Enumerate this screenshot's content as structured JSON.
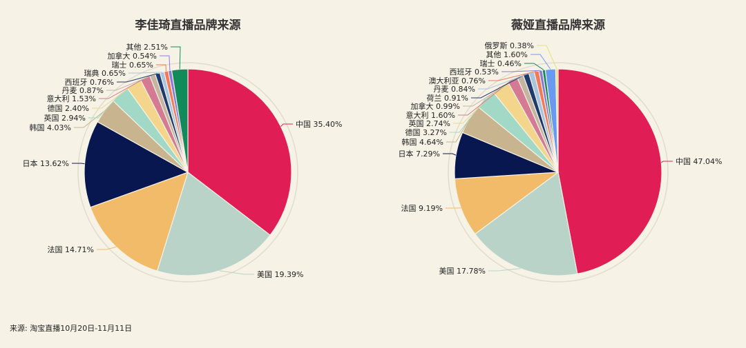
{
  "chart_data": [
    {
      "type": "pie",
      "title": "李佳琦直播品牌来源",
      "slices": [
        {
          "label": "中国",
          "value": 35.4,
          "display": "35.40%",
          "color": "#e01e55"
        },
        {
          "label": "美国",
          "value": 19.39,
          "display": "19.39%",
          "color": "#b9d3c9"
        },
        {
          "label": "法国",
          "value": 14.71,
          "display": "14.71%",
          "color": "#f1bb6a"
        },
        {
          "label": "日本",
          "value": 13.62,
          "display": "13.62%",
          "color": "#091750"
        },
        {
          "label": "韩国",
          "value": 4.03,
          "display": "4.03%",
          "color": "#c8b48e"
        },
        {
          "label": "英国",
          "value": 2.94,
          "display": "2.94%",
          "color": "#a2d9c6"
        },
        {
          "label": "德国",
          "value": 2.4,
          "display": "2.40%",
          "color": "#f3d68c"
        },
        {
          "label": "意大利",
          "value": 1.53,
          "display": "1.53%",
          "color": "#d47a93"
        },
        {
          "label": "丹麦",
          "value": 0.87,
          "display": "0.87%",
          "color": "#c4b5a0"
        },
        {
          "label": "西班牙",
          "value": 0.76,
          "display": "0.76%",
          "color": "#1e3a6e"
        },
        {
          "label": "瑞典",
          "value": 0.65,
          "display": "0.65%",
          "color": "#a8c4e0"
        },
        {
          "label": "瑞士",
          "value": 0.65,
          "display": "0.65%",
          "color": "#f07a5a"
        },
        {
          "label": "加拿大",
          "value": 0.54,
          "display": "0.54%",
          "color": "#8a7ad8"
        },
        {
          "label": "其他",
          "value": 2.51,
          "display": "2.51%",
          "color": "#128a5a"
        }
      ]
    },
    {
      "type": "pie",
      "title": "薇娅直播品牌来源",
      "slices": [
        {
          "label": "中国",
          "value": 47.04,
          "display": "47.04%",
          "color": "#e01e55"
        },
        {
          "label": "美国",
          "value": 17.78,
          "display": "17.78%",
          "color": "#b9d3c9"
        },
        {
          "label": "法国",
          "value": 9.19,
          "display": "9.19%",
          "color": "#f1bb6a"
        },
        {
          "label": "日本",
          "value": 7.29,
          "display": "7.29%",
          "color": "#091750"
        },
        {
          "label": "韩国",
          "value": 4.64,
          "display": "4.64%",
          "color": "#c8b48e"
        },
        {
          "label": "德国",
          "value": 3.27,
          "display": "3.27%",
          "color": "#a2d9c6"
        },
        {
          "label": "英国",
          "value": 2.74,
          "display": "2.74%",
          "color": "#f3d68c"
        },
        {
          "label": "意大利",
          "value": 1.6,
          "display": "1.60%",
          "color": "#d47a93"
        },
        {
          "label": "加拿大",
          "value": 0.99,
          "display": "0.99%",
          "color": "#c4b5a0"
        },
        {
          "label": "荷兰",
          "value": 0.91,
          "display": "0.91%",
          "color": "#1e3a6e"
        },
        {
          "label": "丹麦",
          "value": 0.84,
          "display": "0.84%",
          "color": "#a8c4e0"
        },
        {
          "label": "澳大利亚",
          "value": 0.76,
          "display": "0.76%",
          "color": "#f07a5a"
        },
        {
          "label": "西班牙",
          "value": 0.53,
          "display": "0.53%",
          "color": "#8a7ad8"
        },
        {
          "label": "瑞士",
          "value": 0.46,
          "display": "0.46%",
          "color": "#128a5a"
        },
        {
          "label": "其他",
          "value": 1.6,
          "display": "1.60%",
          "color": "#6a9af0"
        },
        {
          "label": "俄罗斯",
          "value": 0.38,
          "display": "0.38%",
          "color": "#e8e07a"
        }
      ]
    }
  ],
  "footer": {
    "source": "来源: 淘宝直播10月20日-11月11日"
  }
}
